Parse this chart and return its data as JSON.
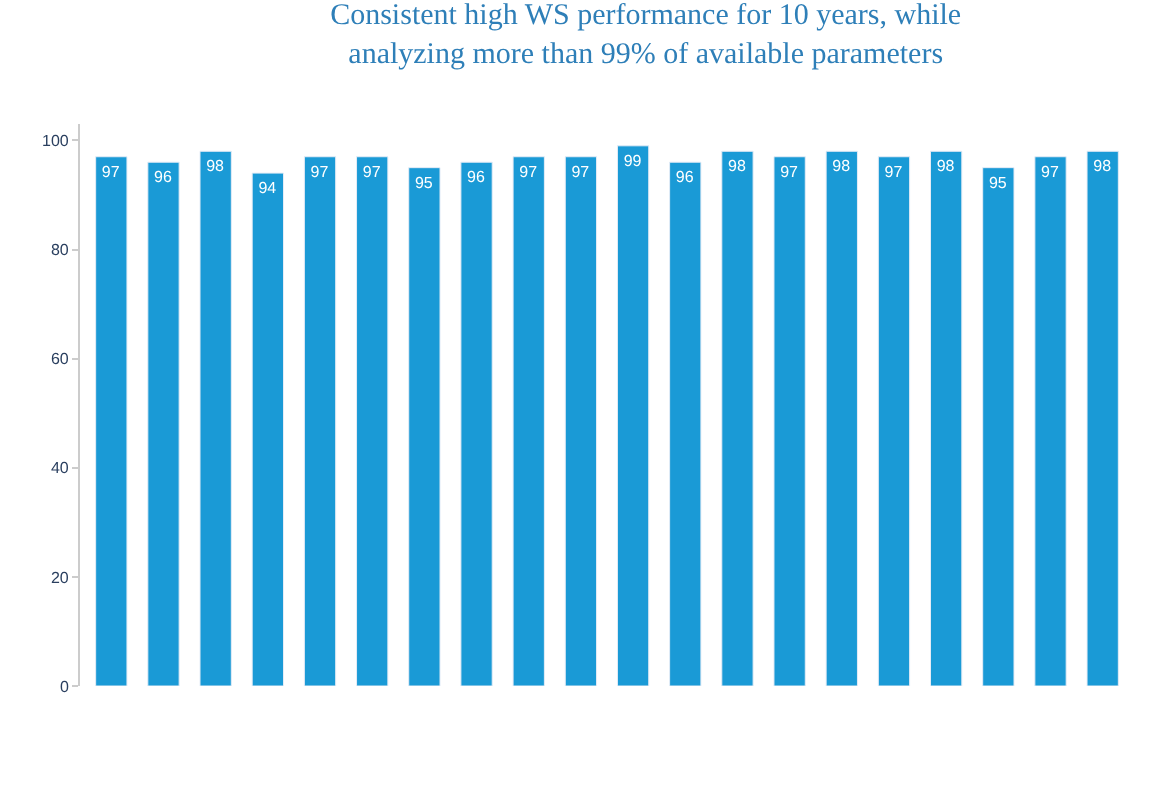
{
  "chart_data": {
    "type": "bar",
    "title": "Consistent high WS performance for 10 years, while analyzing more than 99% of available parameters",
    "categories": [
      null,
      null,
      null,
      null,
      null,
      null,
      null,
      null,
      null,
      null,
      null,
      null,
      null,
      null,
      null,
      null,
      null,
      null,
      null,
      null
    ],
    "values": [
      97,
      96,
      98,
      94,
      97,
      97,
      95,
      96,
      97,
      97,
      99,
      96,
      98,
      97,
      98,
      97,
      98,
      95,
      97,
      98
    ],
    "color": "#1a9ad6",
    "ylim": [
      0,
      103
    ],
    "yticks": [
      0,
      20,
      40,
      60,
      80,
      100
    ],
    "data_labels": true
  }
}
